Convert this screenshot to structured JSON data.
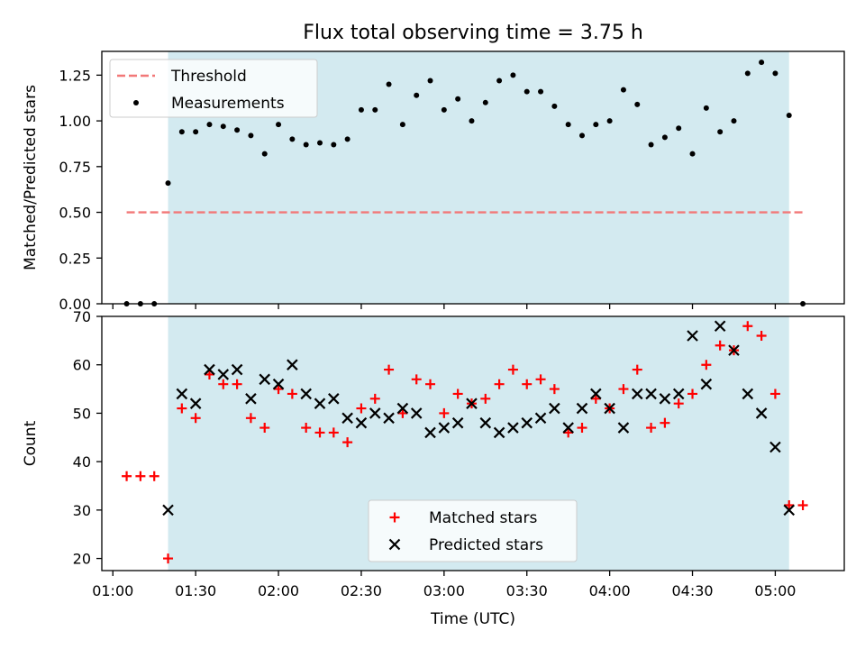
{
  "title": "Flux total observing time = 3.75 h",
  "colors": {
    "shade": "#d3eaf0",
    "threshold": "#f27878",
    "measurement": "#000000",
    "matched": "#ff0000",
    "predicted": "#000000"
  },
  "chart_data": [
    {
      "type": "scatter",
      "panel": "top",
      "title": "Flux total observing time = 3.75 h",
      "xlabel": "",
      "ylabel": "Matched/Predicted stars",
      "xlim": [
        "00:56",
        "05:25"
      ],
      "ylim": [
        0,
        1.38
      ],
      "yticks": [
        "0.00",
        "0.25",
        "0.50",
        "0.75",
        "1.00",
        "1.25"
      ],
      "shaded_interval": [
        "01:20",
        "05:05"
      ],
      "grid": false,
      "legend_position": "top-left",
      "threshold": {
        "name": "Threshold",
        "value": 0.5,
        "x": [
          "01:05",
          "05:10"
        ],
        "style": "dashed"
      },
      "series": [
        {
          "name": "Measurements",
          "marker": "dot",
          "points": [
            [
              "01:05",
              0.0
            ],
            [
              "01:10",
              0.0
            ],
            [
              "01:15",
              0.0
            ],
            [
              "01:20",
              0.66
            ],
            [
              "01:25",
              0.94
            ],
            [
              "01:30",
              0.94
            ],
            [
              "01:35",
              0.98
            ],
            [
              "01:40",
              0.97
            ],
            [
              "01:45",
              0.95
            ],
            [
              "01:50",
              0.92
            ],
            [
              "01:55",
              0.82
            ],
            [
              "02:00",
              0.98
            ],
            [
              "02:05",
              0.9
            ],
            [
              "02:10",
              0.87
            ],
            [
              "02:15",
              0.88
            ],
            [
              "02:20",
              0.87
            ],
            [
              "02:25",
              0.9
            ],
            [
              "02:30",
              1.06
            ],
            [
              "02:35",
              1.06
            ],
            [
              "02:40",
              1.2
            ],
            [
              "02:45",
              0.98
            ],
            [
              "02:50",
              1.14
            ],
            [
              "02:55",
              1.22
            ],
            [
              "03:00",
              1.06
            ],
            [
              "03:05",
              1.12
            ],
            [
              "03:10",
              1.0
            ],
            [
              "03:15",
              1.1
            ],
            [
              "03:20",
              1.22
            ],
            [
              "03:25",
              1.25
            ],
            [
              "03:30",
              1.16
            ],
            [
              "03:35",
              1.16
            ],
            [
              "03:40",
              1.08
            ],
            [
              "03:45",
              0.98
            ],
            [
              "03:50",
              0.92
            ],
            [
              "03:55",
              0.98
            ],
            [
              "04:00",
              1.0
            ],
            [
              "04:05",
              1.17
            ],
            [
              "04:10",
              1.09
            ],
            [
              "04:15",
              0.87
            ],
            [
              "04:20",
              0.91
            ],
            [
              "04:25",
              0.96
            ],
            [
              "04:30",
              0.82
            ],
            [
              "04:35",
              1.07
            ],
            [
              "04:40",
              0.94
            ],
            [
              "04:45",
              1.0
            ],
            [
              "04:50",
              1.26
            ],
            [
              "04:55",
              1.32
            ],
            [
              "05:00",
              1.26
            ],
            [
              "05:05",
              1.03
            ],
            [
              "05:10",
              0.0
            ]
          ]
        }
      ]
    },
    {
      "type": "scatter",
      "panel": "bottom",
      "xlabel": "Time (UTC)",
      "ylabel": "Count",
      "xlim": [
        "00:56",
        "05:25"
      ],
      "ylim": [
        17.5,
        70
      ],
      "xticks": [
        "01:00",
        "01:30",
        "02:00",
        "02:30",
        "03:00",
        "03:30",
        "04:00",
        "04:30",
        "05:00"
      ],
      "yticks": [
        "20",
        "30",
        "40",
        "50",
        "60",
        "70"
      ],
      "shaded_interval": [
        "01:20",
        "05:05"
      ],
      "grid": false,
      "legend_position": "bottom-center",
      "series": [
        {
          "name": "Matched stars",
          "marker": "plus",
          "points": [
            [
              "01:05",
              37
            ],
            [
              "01:10",
              37
            ],
            [
              "01:15",
              37
            ],
            [
              "01:20",
              20
            ],
            [
              "01:25",
              51
            ],
            [
              "01:30",
              49
            ],
            [
              "01:35",
              58
            ],
            [
              "01:40",
              56
            ],
            [
              "01:45",
              56
            ],
            [
              "01:50",
              49
            ],
            [
              "01:55",
              47
            ],
            [
              "02:00",
              55
            ],
            [
              "02:05",
              54
            ],
            [
              "02:10",
              47
            ],
            [
              "02:15",
              46
            ],
            [
              "02:20",
              46
            ],
            [
              "02:25",
              44
            ],
            [
              "02:30",
              51
            ],
            [
              "02:35",
              53
            ],
            [
              "02:40",
              59
            ],
            [
              "02:45",
              50
            ],
            [
              "02:50",
              57
            ],
            [
              "02:55",
              56
            ],
            [
              "03:00",
              50
            ],
            [
              "03:05",
              54
            ],
            [
              "03:10",
              52
            ],
            [
              "03:15",
              53
            ],
            [
              "03:20",
              56
            ],
            [
              "03:25",
              59
            ],
            [
              "03:30",
              56
            ],
            [
              "03:35",
              57
            ],
            [
              "03:40",
              55
            ],
            [
              "03:45",
              46
            ],
            [
              "03:50",
              47
            ],
            [
              "03:55",
              53
            ],
            [
              "04:00",
              51
            ],
            [
              "04:05",
              55
            ],
            [
              "04:10",
              59
            ],
            [
              "04:15",
              47
            ],
            [
              "04:20",
              48
            ],
            [
              "04:25",
              52
            ],
            [
              "04:30",
              54
            ],
            [
              "04:35",
              60
            ],
            [
              "04:40",
              64
            ],
            [
              "04:45",
              63
            ],
            [
              "04:50",
              68
            ],
            [
              "04:55",
              66
            ],
            [
              "05:00",
              54
            ],
            [
              "05:05",
              31
            ],
            [
              "05:10",
              31
            ]
          ]
        },
        {
          "name": "Predicted stars",
          "marker": "x",
          "points": [
            [
              "01:20",
              30
            ],
            [
              "01:25",
              54
            ],
            [
              "01:30",
              52
            ],
            [
              "01:35",
              59
            ],
            [
              "01:40",
              58
            ],
            [
              "01:45",
              59
            ],
            [
              "01:50",
              53
            ],
            [
              "01:55",
              57
            ],
            [
              "02:00",
              56
            ],
            [
              "02:05",
              60
            ],
            [
              "02:10",
              54
            ],
            [
              "02:15",
              52
            ],
            [
              "02:20",
              53
            ],
            [
              "02:25",
              49
            ],
            [
              "02:30",
              48
            ],
            [
              "02:35",
              50
            ],
            [
              "02:40",
              49
            ],
            [
              "02:45",
              51
            ],
            [
              "02:50",
              50
            ],
            [
              "02:55",
              46
            ],
            [
              "03:00",
              47
            ],
            [
              "03:05",
              48
            ],
            [
              "03:10",
              52
            ],
            [
              "03:15",
              48
            ],
            [
              "03:20",
              46
            ],
            [
              "03:25",
              47
            ],
            [
              "03:30",
              48
            ],
            [
              "03:35",
              49
            ],
            [
              "03:40",
              51
            ],
            [
              "03:45",
              47
            ],
            [
              "03:50",
              51
            ],
            [
              "03:55",
              54
            ],
            [
              "04:00",
              51
            ],
            [
              "04:05",
              47
            ],
            [
              "04:10",
              54
            ],
            [
              "04:15",
              54
            ],
            [
              "04:20",
              53
            ],
            [
              "04:25",
              54
            ],
            [
              "04:30",
              66
            ],
            [
              "04:35",
              56
            ],
            [
              "04:40",
              68
            ],
            [
              "04:45",
              63
            ],
            [
              "04:50",
              54
            ],
            [
              "04:55",
              50
            ],
            [
              "05:00",
              43
            ],
            [
              "05:05",
              30
            ]
          ]
        }
      ]
    }
  ]
}
